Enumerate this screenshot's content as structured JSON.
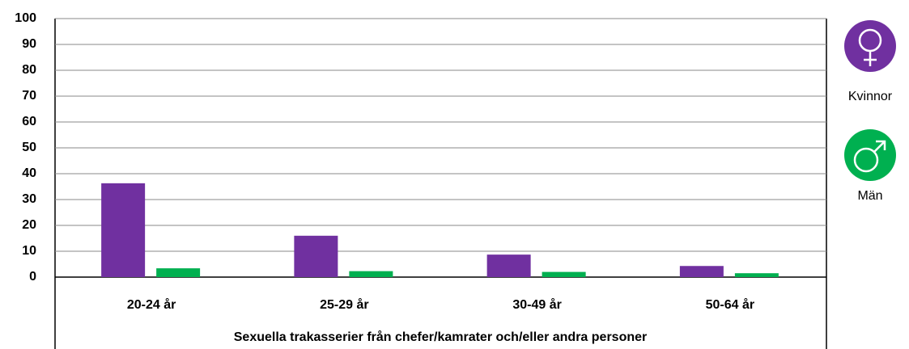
{
  "chart_data": {
    "type": "bar",
    "x_label": "Sexuella trakasserier från chefer/kamrater och/eller andra personer",
    "categories": [
      "20-24 år",
      "25-29 år",
      "30-49 år",
      "50-64 år"
    ],
    "series": [
      {
        "name": "Kvinnor",
        "color": "#7030a0",
        "values": [
          36.3,
          16,
          8.7,
          4.3
        ]
      },
      {
        "name": "Män",
        "color": "#00b050",
        "values": [
          3.4,
          2.3,
          2,
          1.5
        ]
      }
    ],
    "ylim": [
      0,
      100
    ],
    "yticks": [
      0,
      10,
      20,
      30,
      40,
      50,
      60,
      70,
      80,
      90,
      100
    ],
    "grid": true
  }
}
